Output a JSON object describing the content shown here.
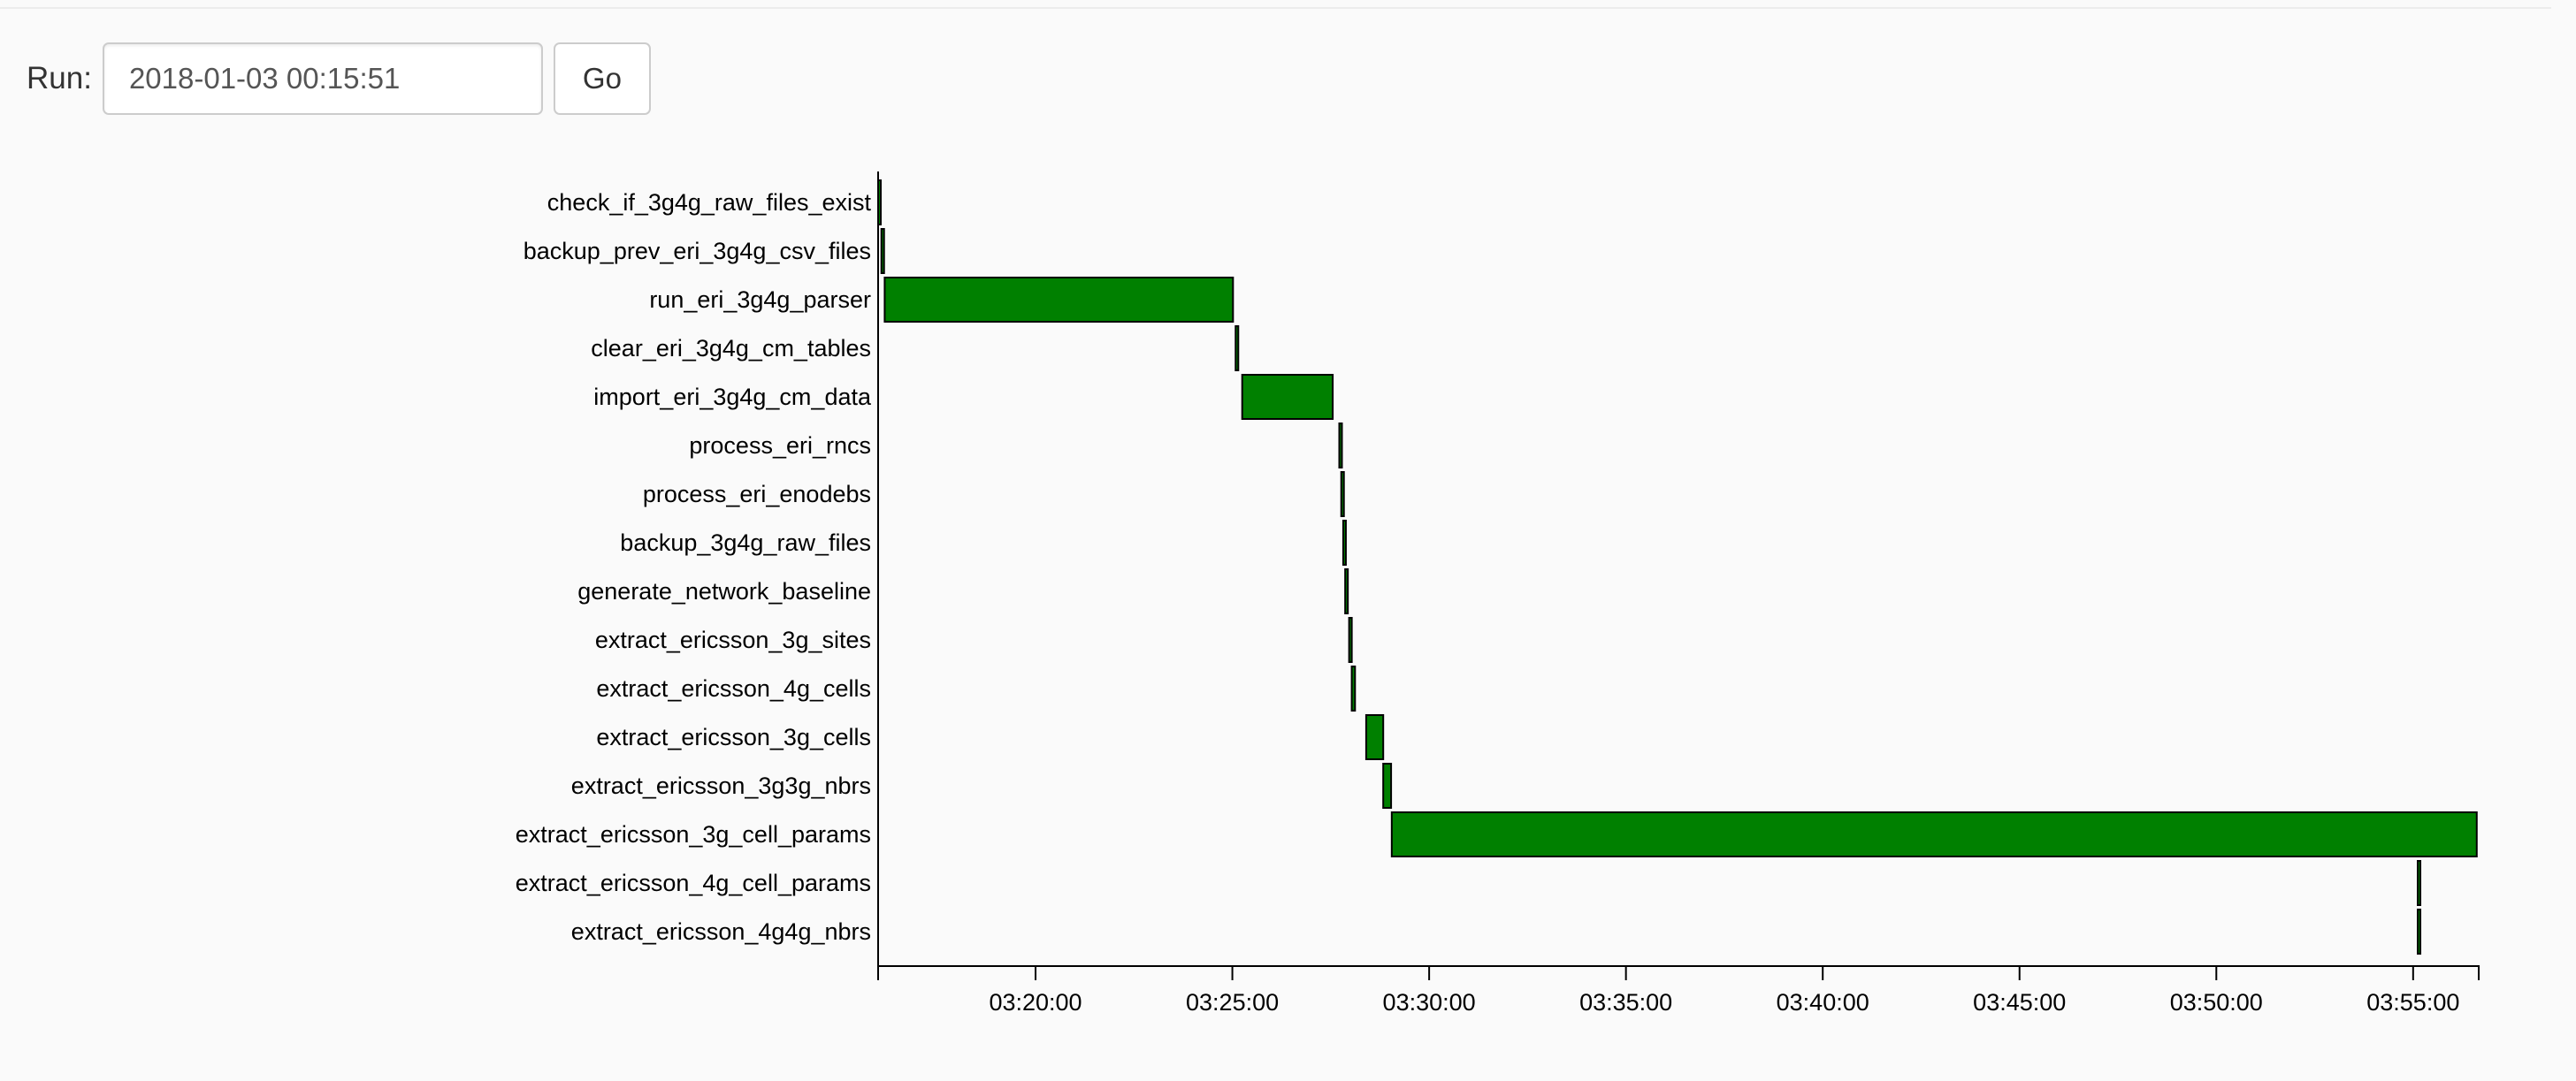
{
  "form": {
    "label": "Run:",
    "run_value": "2018-01-03 00:15:51",
    "go_label": "Go"
  },
  "colors": {
    "bar_fill": "#008000",
    "bar_stroke": "#000000",
    "axis": "#000000"
  },
  "chart_data": {
    "type": "gantt",
    "title": "",
    "xlabel": "",
    "ylabel": "",
    "x_axis": {
      "range": [
        "03:16:00",
        "03:56:40"
      ],
      "ticks": [
        "03:20:00",
        "03:25:00",
        "03:30:00",
        "03:35:00",
        "03:40:00",
        "03:45:00",
        "03:50:00",
        "03:55:00"
      ]
    },
    "tasks": [
      {
        "name": "check_if_3g4g_raw_files_exist",
        "start": "03:16:00",
        "end": "03:16:02"
      },
      {
        "name": "backup_prev_eri_3g4g_csv_files",
        "start": "03:16:05",
        "end": "03:16:09"
      },
      {
        "name": "run_eri_3g4g_parser",
        "start": "03:16:10",
        "end": "03:25:01"
      },
      {
        "name": "clear_eri_3g4g_cm_tables",
        "start": "03:25:05",
        "end": "03:25:08"
      },
      {
        "name": "import_eri_3g4g_cm_data",
        "start": "03:25:15",
        "end": "03:27:33"
      },
      {
        "name": "process_eri_rncs",
        "start": "03:27:43",
        "end": "03:27:46"
      },
      {
        "name": "process_eri_enodebs",
        "start": "03:27:46",
        "end": "03:27:49"
      },
      {
        "name": "backup_3g4g_raw_files",
        "start": "03:27:49",
        "end": "03:27:52"
      },
      {
        "name": "generate_network_baseline",
        "start": "03:27:52",
        "end": "03:27:55"
      },
      {
        "name": "extract_ericsson_3g_sites",
        "start": "03:27:58",
        "end": "03:28:01"
      },
      {
        "name": "extract_ericsson_4g_cells",
        "start": "03:28:02",
        "end": "03:28:07"
      },
      {
        "name": "extract_ericsson_3g_cells",
        "start": "03:28:24",
        "end": "03:28:50"
      },
      {
        "name": "extract_ericsson_3g3g_nbrs",
        "start": "03:28:50",
        "end": "03:29:02"
      },
      {
        "name": "extract_ericsson_3g_cell_params",
        "start": "03:29:03",
        "end": "03:56:37"
      },
      {
        "name": "extract_ericsson_4g_cell_params",
        "start": "03:55:07",
        "end": "03:55:10"
      },
      {
        "name": "extract_ericsson_4g4g_nbrs",
        "start": "03:55:07",
        "end": "03:55:10"
      }
    ]
  }
}
